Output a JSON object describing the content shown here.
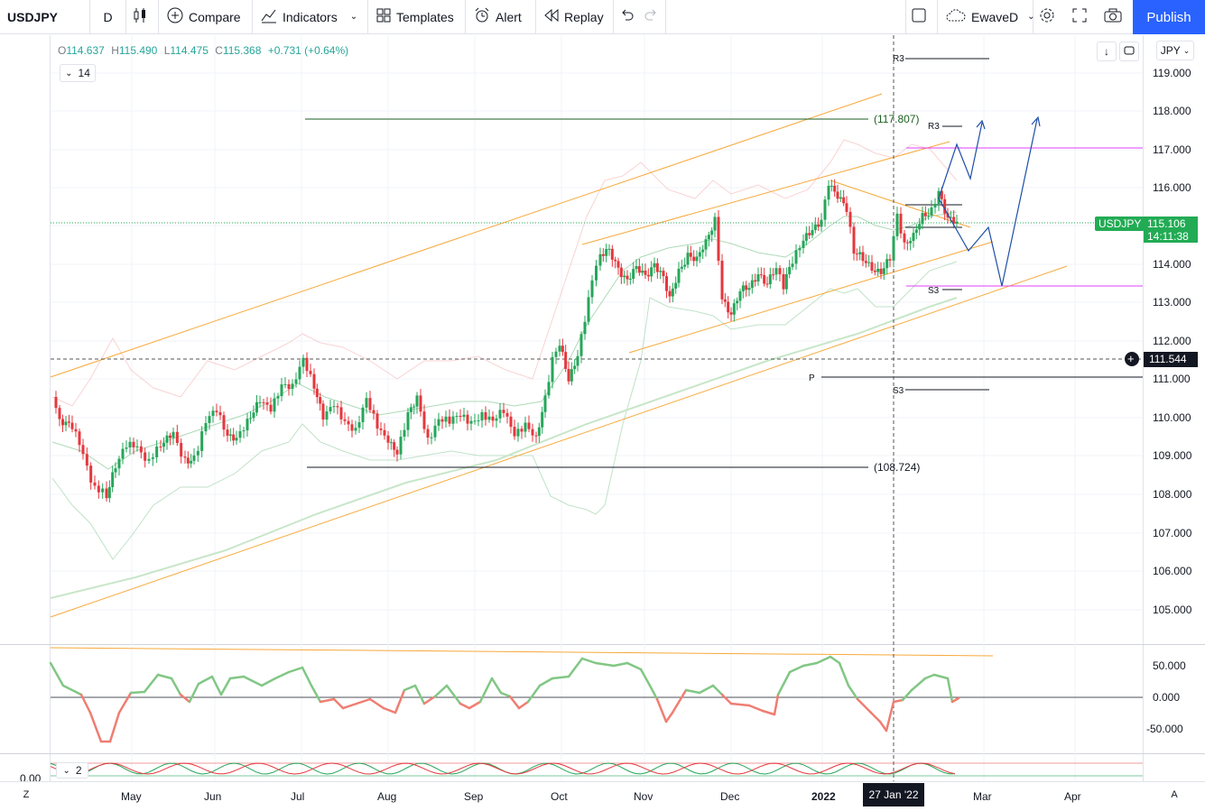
{
  "toolbar": {
    "symbol": "USDJPY",
    "interval": "D",
    "compare": "Compare",
    "indicators": "Indicators",
    "templates": "Templates",
    "alert": "Alert",
    "replay": "Replay",
    "layout_name": "EwaveD",
    "publish": "Publish",
    "icons": [
      "candles-icon",
      "plus-circle-icon",
      "indicators-icon",
      "templates-icon",
      "alert-icon",
      "replay-icon",
      "undo-icon",
      "redo-icon",
      "square-icon",
      "cloud-icon",
      "gear-icon",
      "fullscreen-icon",
      "camera-icon"
    ]
  },
  "legend": {
    "open_label": "O",
    "open": "114.637",
    "high_label": "H",
    "high": "115.490",
    "low_label": "L",
    "low": "114.475",
    "close_label": "C",
    "close": "115.368",
    "change": "+0.731 (+0.64%)",
    "indicator_param": "14",
    "sub_param": "2"
  },
  "currency": "JPY",
  "price_axis": [
    "119.000",
    "118.000",
    "117.000",
    "116.000",
    "115.000",
    "114.000",
    "113.000",
    "112.000",
    "111.000",
    "110.000",
    "109.000",
    "108.000",
    "107.000",
    "106.000",
    "105.000"
  ],
  "osc_axis": [
    "50.000",
    "0.000",
    "-50.000"
  ],
  "sub_axis": "0.00",
  "current_price": {
    "symbol": "USDJPY",
    "price": "115.106",
    "countdown": "14:11:38"
  },
  "crosshair_price": "111.544",
  "levels": {
    "top": "(117.807)",
    "bottom": "(108.724)"
  },
  "pivot_labels": {
    "r3_top": "R3",
    "r3_mid": "R3",
    "s3_mid": "S3",
    "p": "P",
    "s3_low": "S3"
  },
  "time_axis": [
    "May",
    "Jun",
    "Jul",
    "Aug",
    "Sep",
    "Oct",
    "Nov",
    "Dec",
    "2022",
    "Mar",
    "Apr"
  ],
  "crosshair_date": "27 Jan '22",
  "corner_left": "Z",
  "corner_right": "A",
  "colors": {
    "up": "#26a69a",
    "candle_up": "#26a65a",
    "down": "#e5373d",
    "channel": "#f7a83a",
    "forecast": "#2962ff",
    "magenta": "#e040fb",
    "publish": "#2962ff",
    "price_box": "#22ab54"
  }
}
